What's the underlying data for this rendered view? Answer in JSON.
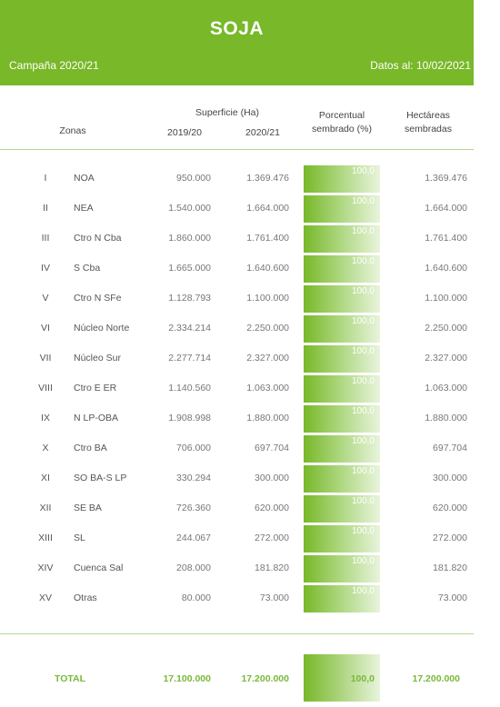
{
  "header": {
    "title": "SOJA",
    "campaign": "Campaña 2020/21",
    "date": "Datos al: 10/02/2021"
  },
  "columns": {
    "zonas": "Zonas",
    "superficie": "Superficie (Ha)",
    "y1": "2019/20",
    "y2": "2020/21",
    "porcentual_line1": "Porcentual",
    "porcentual_line2": "sembrado (%)",
    "hectareas_line1": "Hectáreas",
    "hectareas_line2": "sembradas"
  },
  "rows": [
    {
      "num": "I",
      "zona": "NOA",
      "y1": "950.000",
      "y2": "1.369.476",
      "pct": "100,0",
      "hect": "1.369.476"
    },
    {
      "num": "II",
      "zona": "NEA",
      "y1": "1.540.000",
      "y2": "1.664.000",
      "pct": "100,0",
      "hect": "1.664.000"
    },
    {
      "num": "III",
      "zona": "Ctro N Cba",
      "y1": "1.860.000",
      "y2": "1.761.400",
      "pct": "100,0",
      "hect": "1.761.400"
    },
    {
      "num": "IV",
      "zona": "S Cba",
      "y1": "1.665.000",
      "y2": "1.640.600",
      "pct": "100,0",
      "hect": "1.640.600"
    },
    {
      "num": "V",
      "zona": "Ctro N SFe",
      "y1": "1.128.793",
      "y2": "1.100.000",
      "pct": "100,0",
      "hect": "1.100.000"
    },
    {
      "num": "VI",
      "zona": "Núcleo Norte",
      "y1": "2.334.214",
      "y2": "2.250.000",
      "pct": "100,0",
      "hect": "2.250.000"
    },
    {
      "num": "VII",
      "zona": "Núcleo Sur",
      "y1": "2.277.714",
      "y2": "2.327.000",
      "pct": "100,0",
      "hect": "2.327.000"
    },
    {
      "num": "VIII",
      "zona": "Ctro E ER",
      "y1": "1.140.560",
      "y2": "1.063.000",
      "pct": "100,0",
      "hect": "1.063.000"
    },
    {
      "num": "IX",
      "zona": "N LP-OBA",
      "y1": "1.908.998",
      "y2": "1.880.000",
      "pct": "100,0",
      "hect": "1.880.000"
    },
    {
      "num": "X",
      "zona": "Ctro BA",
      "y1": "706.000",
      "y2": "697.704",
      "pct": "100,0",
      "hect": "697.704"
    },
    {
      "num": "XI",
      "zona": "SO BA-S LP",
      "y1": "330.294",
      "y2": "300.000",
      "pct": "100,0",
      "hect": "300.000"
    },
    {
      "num": "XII",
      "zona": "SE BA",
      "y1": "726.360",
      "y2": "620.000",
      "pct": "100,0",
      "hect": "620.000"
    },
    {
      "num": "XIII",
      "zona": "SL",
      "y1": "244.067",
      "y2": "272.000",
      "pct": "100,0",
      "hect": "272.000"
    },
    {
      "num": "XIV",
      "zona": "Cuenca Sal",
      "y1": "208.000",
      "y2": "181.820",
      "pct": "100,0",
      "hect": "181.820"
    },
    {
      "num": "XV",
      "zona": "Otras",
      "y1": "80.000",
      "y2": "73.000",
      "pct": "100,0",
      "hect": "73.000"
    }
  ],
  "total": {
    "label": "TOTAL",
    "y1": "17.100.000",
    "y2": "17.200.000",
    "pct": "100,0",
    "hect": "17.200.000"
  },
  "colors": {
    "accent": "#78b829",
    "total_text": "#7ab83a",
    "rule": "#b3d88e"
  }
}
